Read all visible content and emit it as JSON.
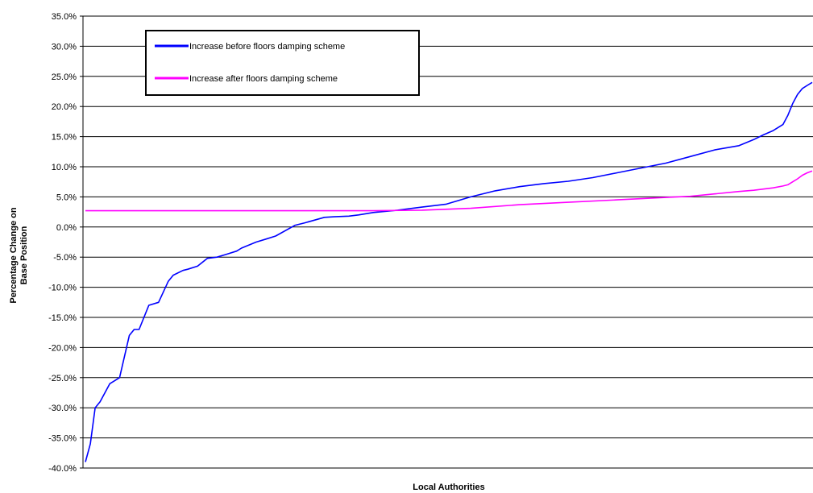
{
  "chart_data": {
    "type": "line",
    "title": "",
    "xlabel": "Local Authorities",
    "ylabel": "Percentage Change on Base Position",
    "ylabel_lines": [
      "Percentage Change on",
      "Base Position"
    ],
    "ylim": [
      -40,
      35
    ],
    "yticks": [
      35,
      30,
      25,
      20,
      15,
      10,
      5,
      0,
      -5,
      -10,
      -15,
      -20,
      -25,
      -30,
      -35,
      -40
    ],
    "ytick_labels": [
      "35.0%",
      "30.0%",
      "25.0%",
      "20.0%",
      "15.0%",
      "10.0%",
      "5.0%",
      "0.0%",
      "-5.0%",
      "-10.0%",
      "-15.0%",
      "-20.0%",
      "-25.0%",
      "-30.0%",
      "-35.0%",
      "-40.0%"
    ],
    "grid": "horizontal",
    "legend_position": "top-left",
    "x_tick_labels": "none",
    "xlim": [
      1,
      150
    ],
    "series": [
      {
        "name": "Increase before floors damping scheme",
        "color": "#0000ff",
        "x": [
          1,
          2,
          3,
          4,
          6,
          8,
          10,
          11,
          12,
          14,
          16,
          18,
          19,
          21,
          22,
          24,
          26,
          28,
          30,
          32,
          33,
          36,
          38,
          40,
          44,
          46,
          50,
          52,
          55,
          57,
          60,
          65,
          70,
          75,
          80,
          85,
          90,
          95,
          100,
          105,
          110,
          115,
          120,
          125,
          130,
          135,
          138,
          140,
          142,
          144,
          145,
          146,
          147,
          148,
          149,
          150
        ],
        "y": [
          -39,
          -36,
          -30,
          -29,
          -26,
          -25,
          -18,
          -17,
          -17,
          -13,
          -12.5,
          -9,
          -8,
          -7.2,
          -7,
          -6.5,
          -5.2,
          -5,
          -4.5,
          -4,
          -3.5,
          -2.5,
          -2,
          -1.5,
          0.3,
          0.7,
          1.6,
          1.7,
          1.8,
          2,
          2.4,
          2.8,
          3.3,
          3.8,
          5,
          6,
          6.7,
          7.2,
          7.6,
          8.2,
          9,
          9.8,
          10.6,
          11.7,
          12.8,
          13.5,
          14.5,
          15.3,
          16,
          17,
          18.5,
          20.5,
          22,
          23,
          23.5,
          24
        ]
      },
      {
        "name": "Increase after floors damping scheme",
        "color": "#ff00ff",
        "x": [
          1,
          20,
          40,
          60,
          70,
          80,
          90,
          100,
          110,
          120,
          125,
          130,
          135,
          138,
          140,
          142,
          144,
          145,
          146,
          147,
          148,
          149,
          150
        ],
        "y": [
          2.7,
          2.7,
          2.7,
          2.7,
          2.8,
          3.1,
          3.7,
          4.1,
          4.5,
          4.9,
          5.1,
          5.5,
          5.9,
          6.1,
          6.3,
          6.5,
          6.8,
          7,
          7.5,
          8,
          8.6,
          9,
          9.3
        ]
      }
    ]
  }
}
